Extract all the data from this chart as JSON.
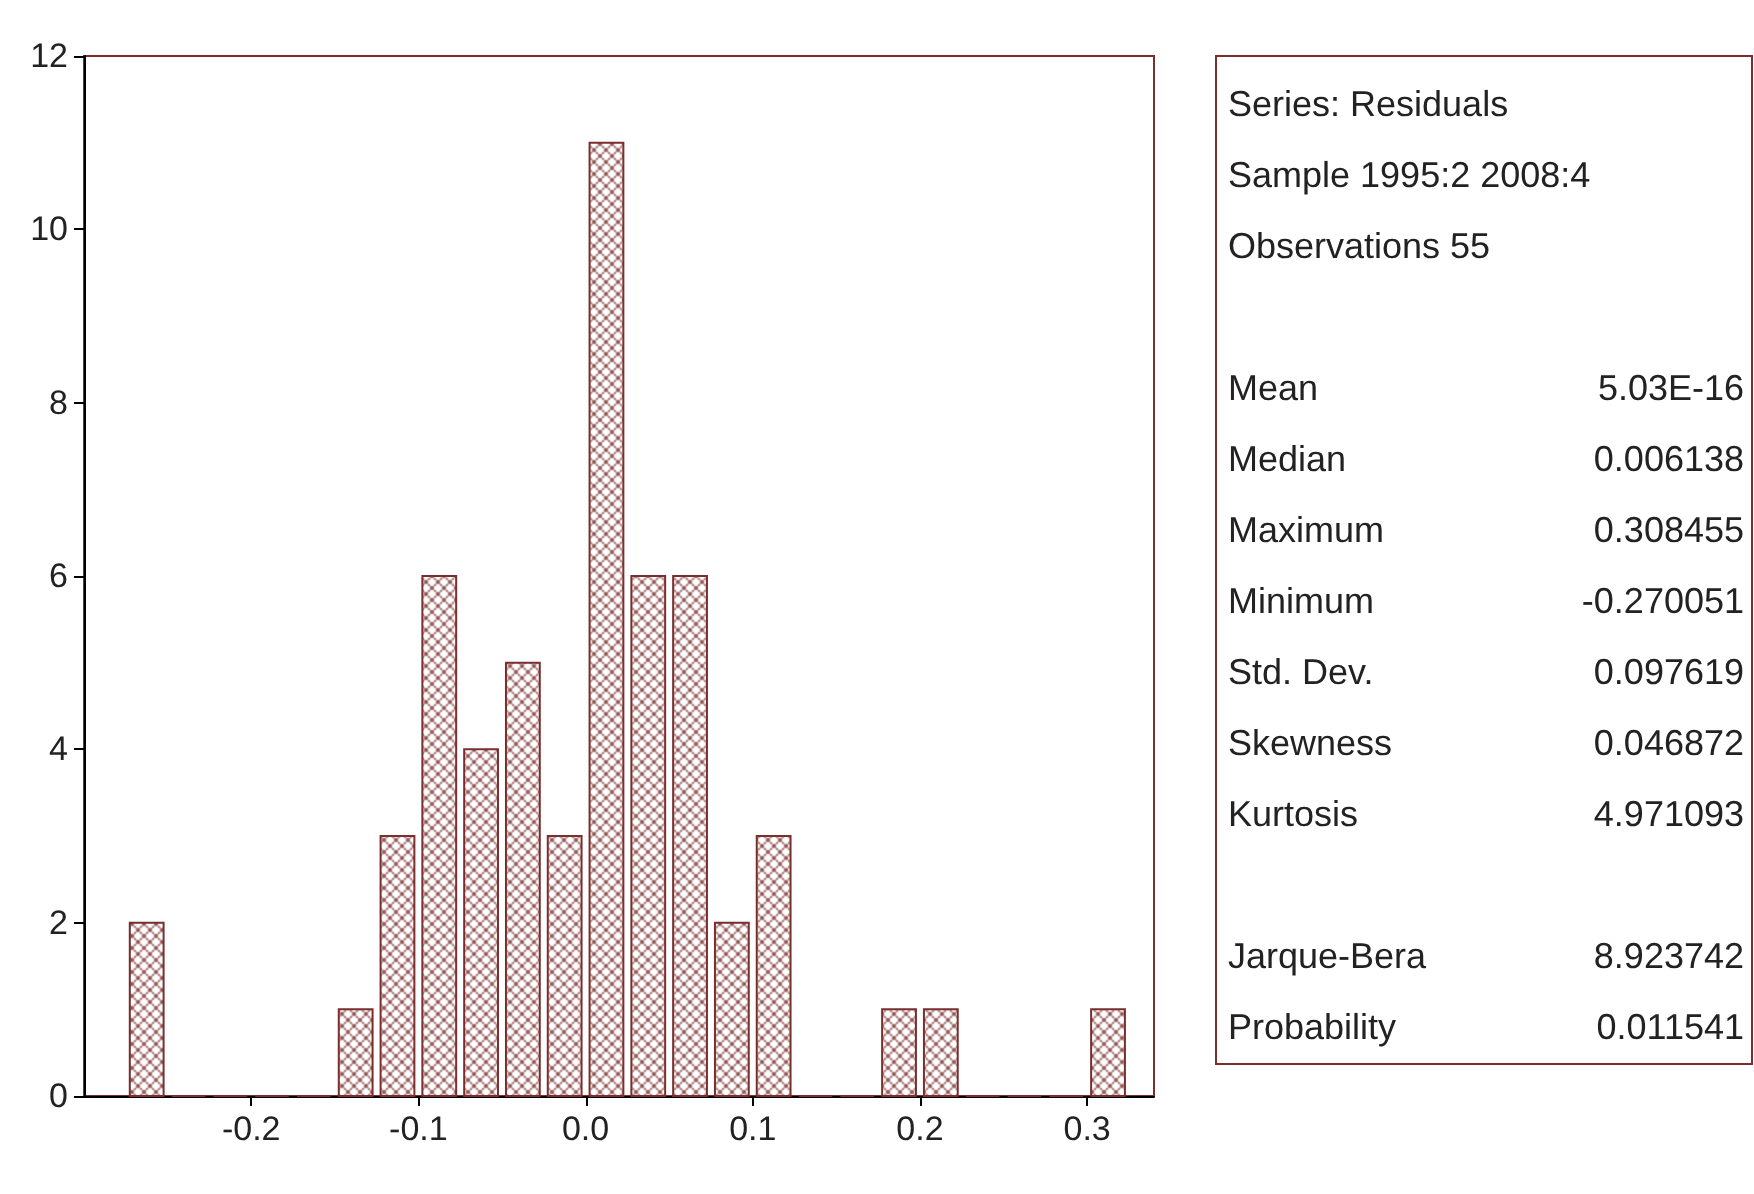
{
  "chart_data": {
    "type": "histogram",
    "color": "#7a2e2e",
    "bins": [
      -0.275,
      -0.25,
      -0.225,
      -0.2,
      -0.175,
      -0.15,
      -0.125,
      -0.1,
      -0.075,
      -0.05,
      -0.025,
      0,
      0.025,
      0.05,
      0.075,
      0.1,
      0.125,
      0.15,
      0.175,
      0.2,
      0.225,
      0.25,
      0.275,
      0.3,
      0.325
    ],
    "values": [
      2,
      0,
      0,
      0,
      0,
      1,
      3,
      6,
      4,
      5,
      3,
      11,
      6,
      6,
      2,
      3,
      0,
      0,
      1,
      1,
      0,
      0,
      0,
      1
    ],
    "xlim": [
      -0.3,
      0.34
    ],
    "xticks": [
      {
        "value": -0.2,
        "label": "-0.2"
      },
      {
        "value": -0.1,
        "label": "-0.1"
      },
      {
        "value": 0,
        "label": "0.0"
      },
      {
        "value": 0.1,
        "label": "0.1"
      },
      {
        "value": 0.2,
        "label": "0.2"
      },
      {
        "value": 0.3,
        "label": "0.3"
      }
    ],
    "ylim": [
      0,
      12
    ],
    "yticks": [
      0,
      2,
      4,
      6,
      8,
      10,
      12
    ],
    "grid": false,
    "annotations": [
      "Series: Residuals",
      "Sample 1995:2 2008:4",
      "Observations 55",
      "Mean 5.03E-16",
      "Median 0.006138",
      "Maximum 0.308455",
      "Minimum -0.270051",
      "Std. Dev. 0.097619",
      "Skewness 0.046872",
      "Kurtosis 4.971093",
      "Jarque-Bera 8.923742",
      "Probability 0.011541"
    ]
  }
}
